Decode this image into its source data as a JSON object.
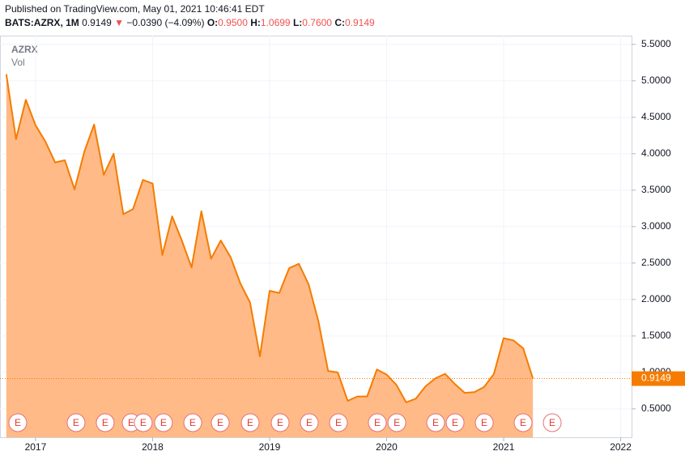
{
  "header": {
    "published": "Published on TradingView.com, May 01, 2021 10:46:41 EDT",
    "symbol": "BATS:AZRX, 1M",
    "last": "0.9149",
    "arrow": "▼",
    "change": "−0.0390 (−4.09%)",
    "o_label": "O:",
    "o": "0.9500",
    "h_label": "H:",
    "h": "1.0699",
    "l_label": "L:",
    "l": "0.7600",
    "c_label": "C:",
    "c": "0.9149"
  },
  "chart_data": {
    "type": "area",
    "volume_label": "Vol",
    "x": [
      2016.75,
      2016.833,
      2016.917,
      2017.0,
      2017.083,
      2017.167,
      2017.25,
      2017.333,
      2017.417,
      2017.5,
      2017.583,
      2017.667,
      2017.75,
      2017.833,
      2017.917,
      2018.0,
      2018.083,
      2018.167,
      2018.25,
      2018.333,
      2018.417,
      2018.5,
      2018.583,
      2018.667,
      2018.75,
      2018.833,
      2018.917,
      2019.0,
      2019.083,
      2019.167,
      2019.25,
      2019.333,
      2019.417,
      2019.5,
      2019.583,
      2019.667,
      2019.75,
      2019.833,
      2019.917,
      2020.0,
      2020.083,
      2020.167,
      2020.25,
      2020.333,
      2020.417,
      2020.5,
      2020.583,
      2020.667,
      2020.75,
      2020.833,
      2020.917,
      2021.0,
      2021.083,
      2021.167,
      2021.25
    ],
    "series": [
      {
        "name": "AZRX",
        "color": "#f57c00",
        "fill_color": "#ffb27a",
        "values": [
          5.09,
          4.2,
          4.74,
          4.39,
          4.17,
          3.88,
          3.91,
          3.51,
          4.03,
          4.4,
          3.71,
          4.0,
          3.17,
          3.24,
          3.64,
          3.59,
          2.61,
          3.14,
          2.81,
          2.44,
          3.21,
          2.56,
          2.81,
          2.58,
          2.22,
          1.96,
          1.22,
          2.12,
          2.09,
          2.43,
          2.49,
          2.21,
          1.7,
          1.02,
          1.0,
          0.61,
          0.67,
          0.67,
          1.04,
          0.97,
          0.83,
          0.59,
          0.64,
          0.81,
          0.92,
          0.98,
          0.84,
          0.72,
          0.73,
          0.8,
          0.98,
          1.47,
          1.44,
          1.33,
          0.9149
        ]
      }
    ],
    "last_price": 0.9149,
    "earnings": [
      {
        "x": 2016.848,
        "label": "E"
      },
      {
        "x": 2017.346,
        "label": "E"
      },
      {
        "x": 2017.595,
        "label": "E"
      },
      {
        "x": 2017.817,
        "label": "E"
      },
      {
        "x": 2017.92,
        "label": "E"
      },
      {
        "x": 2018.093,
        "label": "E"
      },
      {
        "x": 2018.343,
        "label": "E"
      },
      {
        "x": 2018.578,
        "label": "E"
      },
      {
        "x": 2018.834,
        "label": "E"
      },
      {
        "x": 2019.09,
        "label": "E"
      },
      {
        "x": 2019.339,
        "label": "E"
      },
      {
        "x": 2019.588,
        "label": "E"
      },
      {
        "x": 2019.92,
        "label": "E"
      },
      {
        "x": 2020.087,
        "label": "E"
      },
      {
        "x": 2020.419,
        "label": "E"
      },
      {
        "x": 2020.585,
        "label": "E"
      },
      {
        "x": 2020.834,
        "label": "E"
      },
      {
        "x": 2021.166,
        "label": "E"
      },
      {
        "x": 2021.415,
        "label": "E"
      }
    ],
    "xlim": [
      2016.696,
      2022.093
    ],
    "xticks": [
      2017,
      2018,
      2019,
      2020,
      2021,
      2022
    ],
    "ylim": [
      0.11,
      5.62
    ],
    "yticks": [
      {
        "value": 0.5,
        "label": "0.5000"
      },
      {
        "value": 1.0,
        "label": "1.0000"
      },
      {
        "value": 1.5,
        "label": "1.5000"
      },
      {
        "value": 2.0,
        "label": "2.0000"
      },
      {
        "value": 2.5,
        "label": "2.5000"
      },
      {
        "value": 3.0,
        "label": "3.0000"
      },
      {
        "value": 3.5,
        "label": "3.5000"
      },
      {
        "value": 4.0,
        "label": "4.0000"
      },
      {
        "value": 4.5,
        "label": "4.5000"
      },
      {
        "value": 5.0,
        "label": "5.0000"
      },
      {
        "value": 5.5,
        "label": "5.5000"
      }
    ],
    "grid": true
  }
}
